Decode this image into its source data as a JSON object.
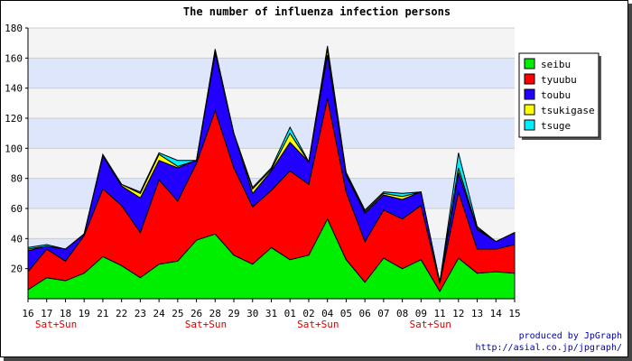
{
  "chart_data": {
    "type": "area",
    "stacked": true,
    "title": "The number of influenza infection persons",
    "xlabel": "",
    "ylabel": "",
    "x": [
      "16",
      "17",
      "18",
      "19",
      "21",
      "22",
      "23",
      "24",
      "25",
      "26",
      "28",
      "29",
      "30",
      "31",
      "01",
      "02",
      "04",
      "05",
      "06",
      "07",
      "08",
      "09",
      "11",
      "12",
      "13",
      "14",
      "15"
    ],
    "weekend_labels": [
      {
        "after_index": 1,
        "text": "Sat+Sun"
      },
      {
        "after_index": 9,
        "text": "Sat+Sun"
      },
      {
        "after_index": 15,
        "text": "Sat+Sun"
      },
      {
        "after_index": 21,
        "text": "Sat+Sun"
      }
    ],
    "ylim": [
      0,
      180
    ],
    "yticks": [
      20,
      40,
      60,
      80,
      100,
      120,
      140,
      160,
      180
    ],
    "grid": true,
    "band_colors": [
      "#f4f4f4",
      "#dde6fb"
    ],
    "legend_position": "right",
    "series": [
      {
        "name": "seibu",
        "color": "#00ee00",
        "values": [
          6,
          14,
          12,
          17,
          28,
          22,
          14,
          23,
          25,
          39,
          43,
          29,
          23,
          34,
          26,
          29,
          53,
          26,
          11,
          27,
          20,
          26,
          5,
          27,
          17,
          18,
          17
        ]
      },
      {
        "name": "tyuubu",
        "color": "#ff0000",
        "values": [
          12,
          19,
          13,
          25,
          45,
          40,
          30,
          56,
          40,
          51,
          82,
          58,
          38,
          38,
          59,
          47,
          80,
          45,
          27,
          32,
          33,
          36,
          5,
          44,
          16,
          15,
          19
        ]
      },
      {
        "name": "toubu",
        "color": "#2200ff",
        "values": [
          14,
          2,
          8,
          1,
          22,
          13,
          23,
          13,
          22,
          2,
          38,
          23,
          9,
          13,
          19,
          15,
          29,
          11,
          19,
          10,
          13,
          9,
          1,
          13,
          13,
          5,
          8
        ]
      },
      {
        "name": "tsukigase",
        "color": "#ffff00",
        "values": [
          1,
          0,
          0,
          0,
          0,
          1,
          3,
          4,
          1,
          0,
          2,
          0,
          3,
          1,
          6,
          0,
          4,
          1,
          1,
          1,
          2,
          0,
          0,
          3,
          1,
          0,
          0
        ]
      },
      {
        "name": "tsuge",
        "color": "#00eeff",
        "values": [
          1,
          1,
          0,
          0,
          1,
          0,
          1,
          1,
          4,
          0,
          1,
          0,
          1,
          1,
          4,
          0,
          2,
          1,
          1,
          1,
          2,
          0,
          0,
          10,
          1,
          0,
          0
        ]
      }
    ]
  },
  "credits": {
    "line1": "produced by JpGraph",
    "line2": "http://asial.co.jp/jpgraph/"
  }
}
